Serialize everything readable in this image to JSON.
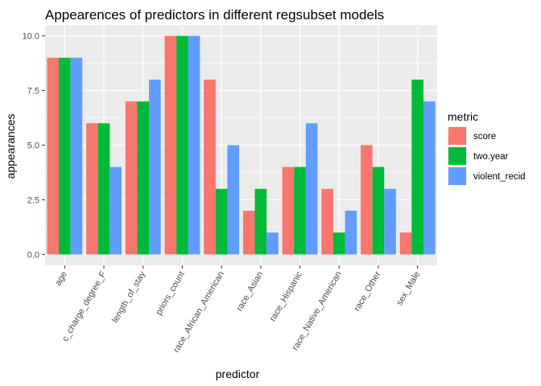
{
  "chart_data": {
    "type": "bar",
    "title": "Appearences of predictors in different regsubset models",
    "xlabel": "predictor",
    "ylabel": "appearances",
    "ylim": [
      -0.5,
      10.5
    ],
    "yticks": [
      "0.0",
      "2.5",
      "5.0",
      "7.5",
      "10.0"
    ],
    "ytick_values": [
      0,
      2.5,
      5,
      7.5,
      10
    ],
    "categories": [
      "age",
      "c_charge_degree_F",
      "length_of_stay",
      "priors_count",
      "race_African_American",
      "race_Asian",
      "race_Hispanic",
      "race_Native_American",
      "race_Other",
      "sex_Male"
    ],
    "series": [
      {
        "name": "score",
        "color": "#F8766D",
        "values": [
          9,
          6,
          7,
          10,
          8,
          2,
          4,
          3,
          5,
          1
        ]
      },
      {
        "name": "two.year",
        "color": "#00BA38",
        "values": [
          9,
          6,
          7,
          10,
          3,
          3,
          4,
          1,
          4,
          8
        ]
      },
      {
        "name": "violent_recid",
        "color": "#619CFF",
        "values": [
          9,
          4,
          8,
          10,
          5,
          1,
          6,
          2,
          3,
          7
        ]
      }
    ],
    "legend": {
      "title": "metric",
      "position": "right"
    },
    "grid": true,
    "panel_background": "#EBEBEB"
  }
}
